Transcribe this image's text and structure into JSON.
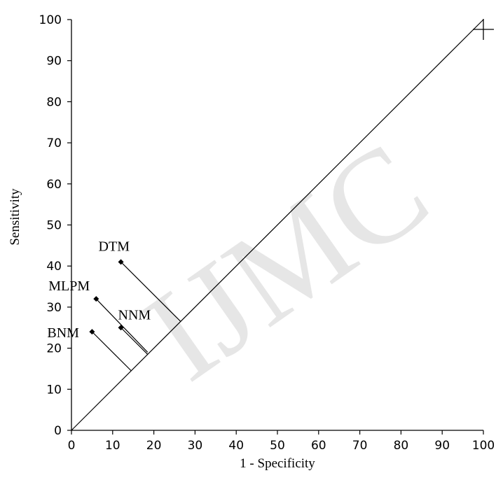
{
  "chart_data": {
    "type": "scatter",
    "title": "",
    "xlabel": "1 - Specificity",
    "ylabel": "Sensitivity",
    "xlim": [
      0,
      100
    ],
    "ylim": [
      0,
      100
    ],
    "xticks": [
      0,
      10,
      20,
      30,
      40,
      50,
      60,
      70,
      80,
      90,
      100
    ],
    "yticks": [
      0,
      10,
      20,
      30,
      40,
      50,
      60,
      70,
      80,
      90,
      100
    ],
    "grid": false,
    "legend": "none",
    "reference_line": {
      "from": [
        0,
        0
      ],
      "to": [
        100,
        100
      ]
    },
    "corner_marker": {
      "x": 100,
      "y": 100
    },
    "points": [
      {
        "label": "DTM",
        "x": 12,
        "y": 41
      },
      {
        "label": "MLPM",
        "x": 6,
        "y": 32
      },
      {
        "label": "NNM",
        "x": 12,
        "y": 25
      },
      {
        "label": "BNM",
        "x": 5,
        "y": 24
      }
    ],
    "watermark": "IJMC",
    "colors": {
      "ink": "#000000",
      "watermark": "#e6e6e6"
    }
  }
}
